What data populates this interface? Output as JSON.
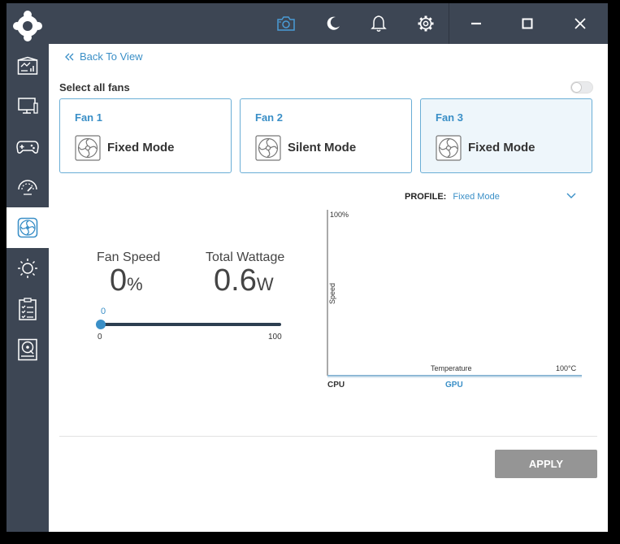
{
  "nav": {
    "items": [
      {
        "icon": "dashboard-icon",
        "active": false
      },
      {
        "icon": "monitor-icon",
        "active": false
      },
      {
        "icon": "gamepad-icon",
        "active": false
      },
      {
        "icon": "gauge-icon",
        "active": false
      },
      {
        "icon": "fan-icon",
        "active": true
      },
      {
        "icon": "sun-icon",
        "active": false
      },
      {
        "icon": "checklist-icon",
        "active": false
      },
      {
        "icon": "hard-drive-icon",
        "active": false
      }
    ]
  },
  "toolbar": {
    "icons": [
      "camera-icon",
      "moon-icon",
      "bell-icon",
      "gear-icon",
      "minimize-icon",
      "maximize-icon",
      "close-icon"
    ],
    "accent": "#4a9cd6"
  },
  "back_link": "Back To View",
  "select_all_label": "Select all fans",
  "select_all_on": false,
  "fans": [
    {
      "name": "Fan 1",
      "mode": "Fixed Mode",
      "selected": false
    },
    {
      "name": "Fan 2",
      "mode": "Silent Mode",
      "selected": false
    },
    {
      "name": "Fan 3",
      "mode": "Fixed Mode",
      "selected": true
    }
  ],
  "profile": {
    "label": "PROFILE:",
    "value": "Fixed Mode"
  },
  "fan_speed": {
    "label": "Fan Speed",
    "value": "0",
    "unit": "%"
  },
  "total_wattage": {
    "label": "Total Wattage",
    "value": "0.6",
    "unit": "W"
  },
  "slider": {
    "current": "0",
    "min": "0",
    "max": "100",
    "value": 0
  },
  "chart": {
    "y_top": "100%",
    "y_label": "Speed",
    "x_label": "Temperature",
    "x_right": "100°C",
    "source_left": "CPU",
    "source_right": "GPU"
  },
  "apply_label": "APPLY",
  "colors": {
    "sidebar": "#3d4654",
    "accent": "#3a8fc7",
    "apply": "#959595"
  }
}
